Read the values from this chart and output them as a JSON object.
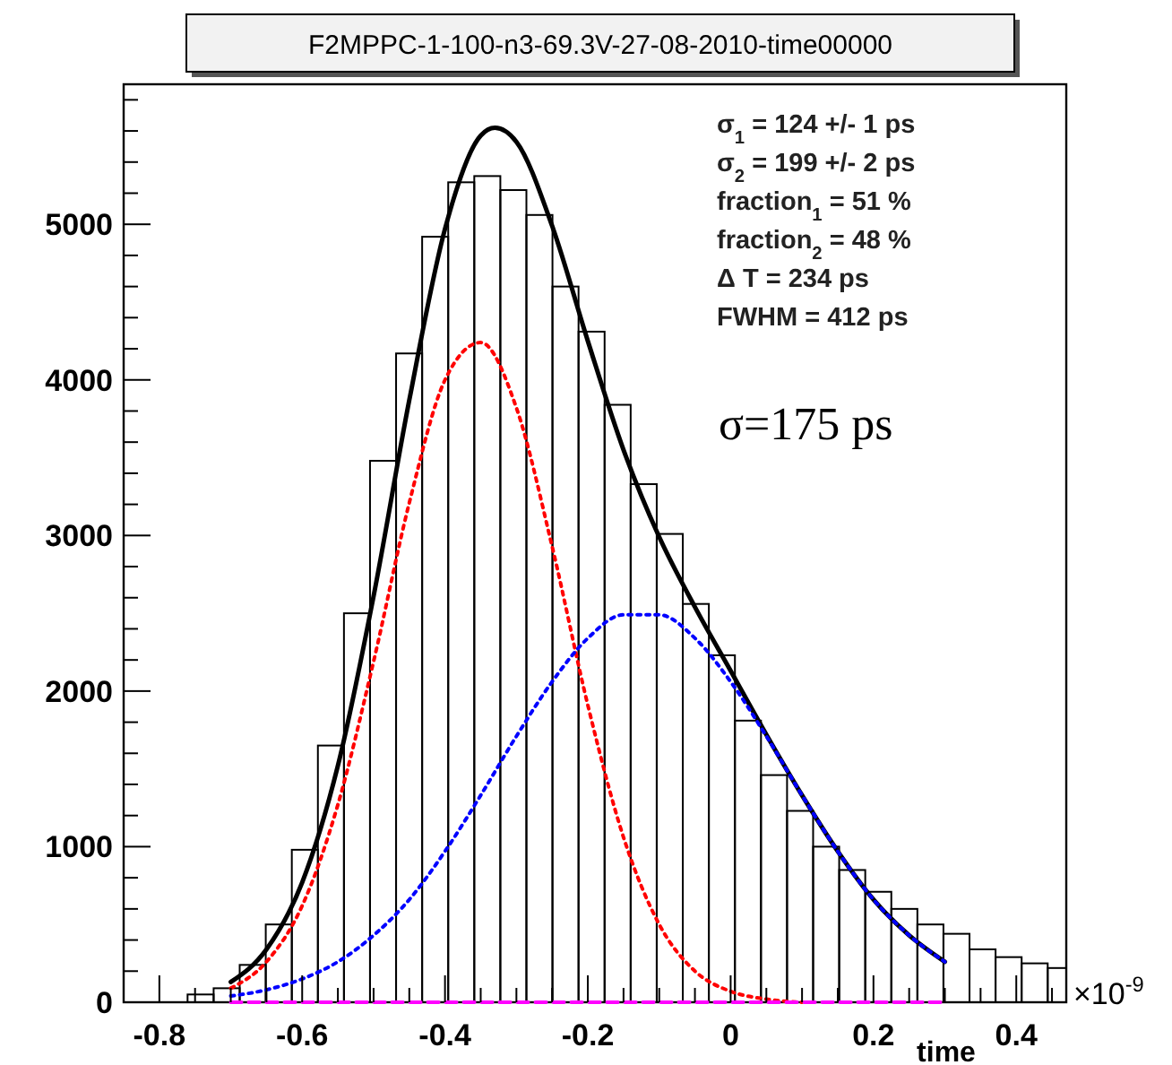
{
  "chart_data": {
    "type": "histogram",
    "title": "F2MPPC-1-100-n3-69.3V-27-08-2010-time00000",
    "xlabel": "time",
    "bins": [
      -0.7605,
      -0.724,
      -0.6875,
      -0.651,
      -0.6145,
      -0.578,
      -0.5415,
      -0.505,
      -0.4685,
      -0.432,
      -0.3955,
      -0.359,
      -0.3225,
      -0.286,
      -0.2495,
      -0.213,
      -0.1765,
      -0.14,
      -0.1035,
      -0.067,
      -0.0305,
      0.006,
      0.0425,
      0.079,
      0.1155,
      0.152,
      0.1885,
      0.225,
      0.2615,
      0.298,
      0.3345,
      0.371,
      0.4075,
      0.444,
      0.47
    ],
    "values": [
      50,
      90,
      240,
      500,
      980,
      1650,
      2500,
      3480,
      4170,
      4920,
      5270,
      5310,
      5220,
      5060,
      4600,
      4310,
      3840,
      3330,
      3010,
      2560,
      2230,
      1810,
      1460,
      1230,
      1000,
      850,
      710,
      600,
      500,
      440,
      340,
      290,
      250,
      220
    ],
    "color": "#000000",
    "series": [
      {
        "type": "line",
        "color": "#000000",
        "line_style": "solid",
        "x": [
          -0.7,
          -0.65,
          -0.6,
          -0.55,
          -0.5,
          -0.45,
          -0.4,
          -0.35,
          -0.33,
          -0.3,
          -0.25,
          -0.2,
          -0.15,
          -0.1,
          -0.05,
          0,
          0.05,
          0.1,
          0.15,
          0.2,
          0.25,
          0.3
        ],
        "values": [
          130,
          340,
          770,
          1520,
          2610,
          3870,
          4970,
          5570,
          5620,
          5530,
          4990,
          4250,
          3550,
          2990,
          2540,
          2130,
          1720,
          1330,
          970,
          660,
          430,
          260
        ]
      },
      {
        "type": "line",
        "color": "#ff0000",
        "line_style": "dotted",
        "x": [
          -0.7,
          -0.65,
          -0.6,
          -0.55,
          -0.5,
          -0.45,
          -0.4,
          -0.35,
          -0.3,
          -0.25,
          -0.2,
          -0.15,
          -0.1,
          -0.05,
          0,
          0.05,
          0.1
        ],
        "values": [
          90,
          260,
          620,
          1270,
          2190,
          3210,
          4000,
          4240,
          3820,
          2930,
          1910,
          1060,
          500,
          200,
          70,
          20,
          0
        ]
      },
      {
        "type": "line",
        "color": "#0000ff",
        "line_style": "dotted",
        "x": [
          -0.7,
          -0.65,
          -0.6,
          -0.55,
          -0.5,
          -0.45,
          -0.4,
          -0.35,
          -0.3,
          -0.25,
          -0.2,
          -0.15,
          -0.1,
          -0.05,
          0,
          0.05,
          0.1,
          0.15,
          0.2,
          0.25,
          0.3
        ],
        "values": [
          40,
          80,
          150,
          260,
          430,
          660,
          970,
          1330,
          1710,
          2060,
          2340,
          2490,
          2490,
          2340,
          2060,
          1710,
          1330,
          970,
          660,
          430,
          260
        ]
      },
      {
        "type": "line",
        "color": "#ff00ff",
        "line_style": "dashed",
        "x": [
          -0.7,
          0.3
        ],
        "values": [
          0,
          0
        ]
      }
    ],
    "xlim": [
      -0.85,
      0.47
    ],
    "ylim": [
      0,
      5900
    ],
    "xticks": [
      {
        "value": -0.8,
        "label": "-0.8"
      },
      {
        "value": -0.75,
        "label": null
      },
      {
        "value": -0.7,
        "label": null
      },
      {
        "value": -0.65,
        "label": null
      },
      {
        "value": -0.6,
        "label": "-0.6"
      },
      {
        "value": -0.55,
        "label": null
      },
      {
        "value": -0.5,
        "label": null
      },
      {
        "value": -0.45,
        "label": null
      },
      {
        "value": -0.4,
        "label": "-0.4"
      },
      {
        "value": -0.35,
        "label": null
      },
      {
        "value": -0.3,
        "label": null
      },
      {
        "value": -0.25,
        "label": null
      },
      {
        "value": -0.2,
        "label": "-0.2"
      },
      {
        "value": -0.15,
        "label": null
      },
      {
        "value": -0.1,
        "label": null
      },
      {
        "value": -0.05,
        "label": null
      },
      {
        "value": 0,
        "label": "0"
      },
      {
        "value": 0.05,
        "label": null
      },
      {
        "value": 0.1,
        "label": null
      },
      {
        "value": 0.15,
        "label": null
      },
      {
        "value": 0.2,
        "label": "0.2"
      },
      {
        "value": 0.25,
        "label": null
      },
      {
        "value": 0.3,
        "label": null
      },
      {
        "value": 0.35,
        "label": null
      },
      {
        "value": 0.4,
        "label": "0.4"
      },
      {
        "value": 0.45,
        "label": null
      }
    ],
    "yticks": [
      0,
      {
        "value": 200,
        "label": null
      },
      {
        "value": 400,
        "label": null
      },
      {
        "value": 600,
        "label": null
      },
      {
        "value": 800,
        "label": null
      },
      1000,
      {
        "value": 1200,
        "label": null
      },
      {
        "value": 1400,
        "label": null
      },
      {
        "value": 1600,
        "label": null
      },
      {
        "value": 1800,
        "label": null
      },
      2000,
      {
        "value": 2200,
        "label": null
      },
      {
        "value": 2400,
        "label": null
      },
      {
        "value": 2600,
        "label": null
      },
      {
        "value": 2800,
        "label": null
      },
      3000,
      {
        "value": 3200,
        "label": null
      },
      {
        "value": 3400,
        "label": null
      },
      {
        "value": 3600,
        "label": null
      },
      {
        "value": 3800,
        "label": null
      },
      4000,
      {
        "value": 4200,
        "label": null
      },
      {
        "value": 4400,
        "label": null
      },
      {
        "value": 4600,
        "label": null
      },
      {
        "value": 4800,
        "label": null
      },
      5000,
      {
        "value": 5200,
        "label": null
      },
      {
        "value": 5400,
        "label": null
      },
      {
        "value": 5600,
        "label": null
      },
      {
        "value": 5800,
        "label": null
      }
    ],
    "annotations": [
      "σ$_{1}$ = 124 +/- 1 ps",
      "σ$_{2}$ = 199 +/- 2 ps",
      "fraction$_{1}$ = 51 %",
      "fraction$_{2}$ = 48 %",
      "Δ T = 234 ps",
      "FWHM = 412 ps",
      "σ=175 ps",
      "×10$^{-9}$"
    ]
  }
}
